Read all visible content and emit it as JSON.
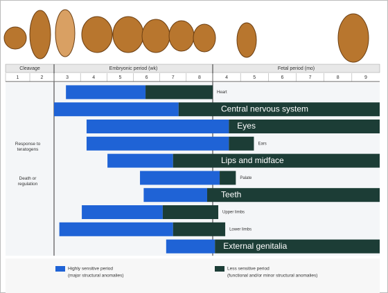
{
  "chart_data": {
    "type": "range-bar",
    "periods": [
      {
        "name": "Cleavage",
        "span": [
          0,
          2
        ]
      },
      {
        "name": "Embryonic period (wk)",
        "span": [
          2,
          8
        ]
      },
      {
        "name": "Fetal period (mo)",
        "span": [
          8,
          14
        ]
      }
    ],
    "xlim": [
      0,
      14
    ],
    "xticks": [
      {
        "value": 0.5,
        "label": "1"
      },
      {
        "value": 1.5,
        "label": "2"
      },
      {
        "value": 2.5,
        "label": "3"
      },
      {
        "value": 3.5,
        "label": "4"
      },
      {
        "value": 4.5,
        "label": "5"
      },
      {
        "value": 5.5,
        "label": "6"
      },
      {
        "value": 6.5,
        "label": "7"
      },
      {
        "value": 7.5,
        "label": "8"
      },
      {
        "value": 8.5,
        "label": "4"
      },
      {
        "value": 9.5,
        "label": "5"
      },
      {
        "value": 10.5,
        "label": "6"
      },
      {
        "value": 11.5,
        "label": "7"
      },
      {
        "value": 12.5,
        "label": "8"
      },
      {
        "value": 13.5,
        "label": "9"
      }
    ],
    "categories": [
      "Heart",
      "Central nervous system",
      "Eyes",
      "Ears",
      "Lips and midface",
      "Palate",
      "Teeth",
      "Upper limbs",
      "Lower limbs",
      "External genitalia"
    ],
    "series": [
      {
        "name": "Highly sensitive period",
        "description": "(major structural anomalies)",
        "color": "#1f63d6",
        "start": [
          2.45,
          2,
          3.23,
          3.23,
          4.02,
          5.25,
          5.39,
          3.05,
          2.2,
          6.24
        ],
        "end": [
          5.46,
          6.71,
          8.58,
          8.58,
          6.5,
          8.25,
          7.79,
          6.11,
          6.5,
          8.08
        ]
      },
      {
        "name": "Less sensitive period",
        "description": "(functional and/or minor structural anomalies)",
        "color": "#1c3d36",
        "start": [
          5.46,
          6.71,
          8.58,
          8.58,
          6.5,
          8.25,
          7.79,
          6.11,
          6.5,
          8.08
        ],
        "end": [
          8,
          14,
          14,
          9.48,
          14,
          8.83,
          14,
          8.2,
          8.45,
          14
        ]
      }
    ],
    "side_labels": [
      "Response to teratogens",
      "Death or regulation"
    ]
  }
}
